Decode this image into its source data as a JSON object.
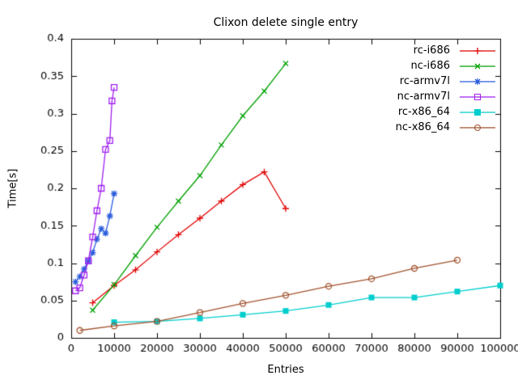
{
  "chart_data": {
    "type": "line",
    "title": "Clixon delete single entry",
    "xlabel": "Entries",
    "ylabel": "Time[s]",
    "xlim": [
      0,
      100000
    ],
    "ylim": [
      0,
      0.4
    ],
    "grid": false,
    "legend_position": "top-right",
    "xticks": {
      "values": [
        0,
        10000,
        20000,
        30000,
        40000,
        50000,
        60000,
        70000,
        80000,
        90000,
        100000
      ],
      "labels": [
        "0",
        "10000",
        "20000",
        "30000",
        "40000",
        "50000",
        "60000",
        "70000",
        "80000",
        "90000",
        "100000"
      ]
    },
    "yticks": {
      "values": [
        0,
        0.05,
        0.1,
        0.15,
        0.2,
        0.25,
        0.3,
        0.35,
        0.4
      ],
      "labels": [
        "0",
        "0.05",
        "0.1",
        "0.15",
        "0.2",
        "0.25",
        "0.3",
        "0.35",
        "0.4"
      ]
    },
    "series": [
      {
        "name": "rc-i686",
        "color": "#e10000",
        "marker": "plus",
        "x": [
          5000,
          10000,
          15000,
          20000,
          25000,
          30000,
          35000,
          40000,
          45000,
          50000
        ],
        "y": [
          0.047,
          0.07,
          0.091,
          0.115,
          0.138,
          0.16,
          0.183,
          0.205,
          0.222,
          0.173
        ]
      },
      {
        "name": "nc-i686",
        "color": "#00a000",
        "marker": "cross",
        "x": [
          5000,
          10000,
          15000,
          20000,
          25000,
          30000,
          35000,
          40000,
          45000,
          50000
        ],
        "y": [
          0.037,
          0.071,
          0.11,
          0.148,
          0.183,
          0.217,
          0.258,
          0.297,
          0.33,
          0.367
        ]
      },
      {
        "name": "rc-armv7l",
        "color": "#2b5cdd",
        "marker": "asterisk",
        "x": [
          1000,
          2000,
          3000,
          4000,
          5000,
          6000,
          7000,
          8000,
          9000,
          10000
        ],
        "y": [
          0.075,
          0.082,
          0.092,
          0.103,
          0.114,
          0.132,
          0.146,
          0.14,
          0.163,
          0.193
        ]
      },
      {
        "name": "nc-armv7l",
        "color": "#a020f0",
        "marker": "square-open",
        "x": [
          1000,
          2000,
          3000,
          4000,
          5000,
          6000,
          7000,
          8000,
          9000,
          9500,
          10000
        ],
        "y": [
          0.063,
          0.067,
          0.084,
          0.103,
          0.135,
          0.17,
          0.2,
          0.252,
          0.264,
          0.317,
          0.335
        ]
      },
      {
        "name": "rc-x86_64",
        "color": "#00cdcd",
        "marker": "square-filled",
        "x": [
          10000,
          20000,
          30000,
          40000,
          50000,
          60000,
          70000,
          80000,
          90000,
          100000
        ],
        "y": [
          0.021,
          0.022,
          0.026,
          0.031,
          0.036,
          0.044,
          0.054,
          0.054,
          0.062,
          0.07
        ]
      },
      {
        "name": "nc-x86_64",
        "color": "#a0522d",
        "marker": "circle-open",
        "x": [
          2000,
          10000,
          20000,
          30000,
          40000,
          50000,
          60000,
          70000,
          80000,
          90000
        ],
        "y": [
          0.01,
          0.016,
          0.022,
          0.034,
          0.046,
          0.057,
          0.069,
          0.079,
          0.093,
          0.104
        ]
      }
    ]
  }
}
